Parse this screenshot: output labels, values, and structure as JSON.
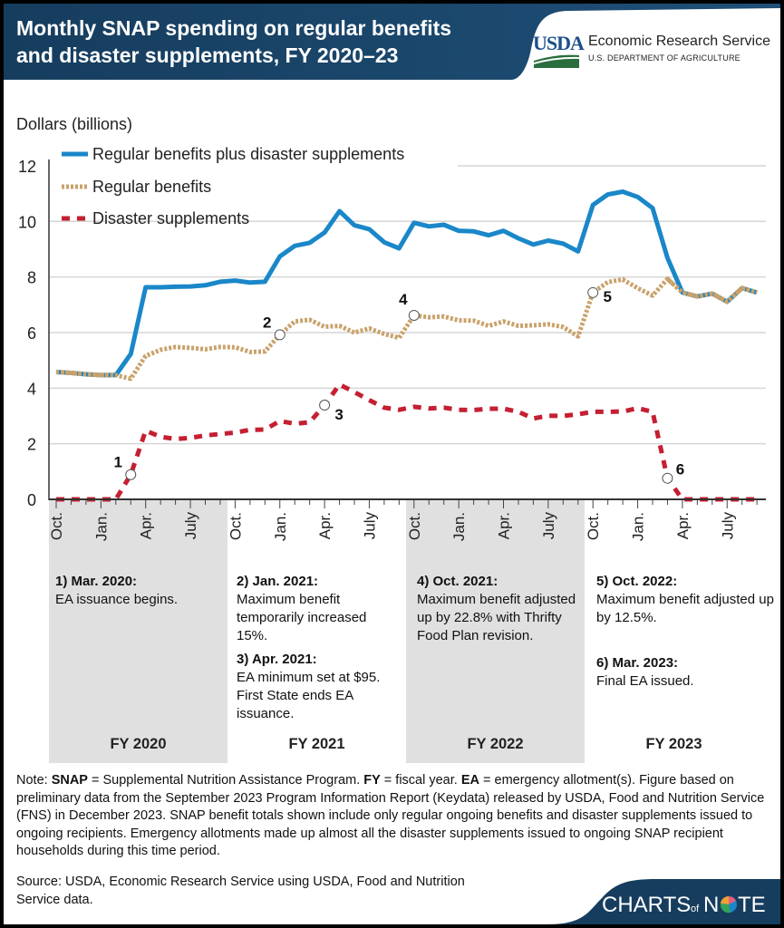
{
  "header": {
    "title": "Monthly SNAP spending on regular benefits and disaster supplements, FY 2020–23",
    "logo_usda": "USDA",
    "logo_agency": "Economic Research Service",
    "logo_department": "U.S. DEPARTMENT OF AGRICULTURE"
  },
  "chart_data": {
    "type": "line",
    "ylabel": "Dollars (billions)",
    "ylim": [
      0,
      12
    ],
    "yticks": [
      "0",
      "2",
      "4",
      "6",
      "8",
      "10",
      "12"
    ],
    "grid": true,
    "legend_placement": "top-left",
    "x_start": "Oct. 2019",
    "x_end": "Sept. 2023",
    "x_tick_labels": [
      "Oct.",
      "Jan.",
      "Apr.",
      "July",
      "Oct.",
      "Jan.",
      "Apr.",
      "July",
      "Oct.",
      "Jan.",
      "Apr.",
      "July",
      "Oct.",
      "Jan.",
      "Apr.",
      "July"
    ],
    "fiscal_years": [
      "FY 2020",
      "FY 2021",
      "FY 2022",
      "FY 2023"
    ],
    "series": [
      {
        "name": "Regular benefits plus disaster supplements",
        "color": "#1a87c9",
        "style": "solid",
        "values": [
          4.58,
          4.55,
          4.5,
          4.47,
          4.47,
          5.23,
          7.63,
          7.63,
          7.65,
          7.66,
          7.7,
          7.83,
          7.87,
          7.8,
          7.83,
          8.74,
          9.12,
          9.23,
          9.6,
          10.37,
          9.86,
          9.72,
          9.25,
          9.03,
          9.95,
          9.82,
          9.88,
          9.66,
          9.64,
          9.5,
          9.66,
          9.39,
          9.17,
          9.31,
          9.2,
          8.92,
          10.59,
          10.97,
          11.07,
          10.88,
          10.48,
          8.69,
          7.44,
          7.3,
          7.4,
          7.11,
          7.6,
          7.44
        ]
      },
      {
        "name": "Regular benefits",
        "color": "#c9a26b",
        "style": "dotted",
        "values": [
          4.58,
          4.55,
          4.5,
          4.47,
          4.47,
          4.34,
          5.16,
          5.38,
          5.48,
          5.45,
          5.4,
          5.48,
          5.47,
          5.3,
          5.32,
          5.92,
          6.4,
          6.46,
          6.21,
          6.24,
          6.0,
          6.15,
          5.95,
          5.81,
          6.62,
          6.55,
          6.58,
          6.44,
          6.43,
          6.24,
          6.4,
          6.24,
          6.26,
          6.3,
          6.2,
          5.86,
          7.44,
          7.82,
          7.91,
          7.6,
          7.33,
          7.93,
          7.44,
          7.3,
          7.4,
          7.11,
          7.6,
          7.44
        ]
      },
      {
        "name": "Disaster supplements",
        "color": "#c51f32",
        "style": "dashed",
        "values": [
          0,
          0,
          0,
          0,
          0,
          0.89,
          2.47,
          2.25,
          2.17,
          2.21,
          2.3,
          2.35,
          2.4,
          2.5,
          2.51,
          2.82,
          2.72,
          2.77,
          3.39,
          4.13,
          3.86,
          3.57,
          3.3,
          3.22,
          3.33,
          3.27,
          3.3,
          3.22,
          3.21,
          3.26,
          3.26,
          3.15,
          2.91,
          3.01,
          3.0,
          3.06,
          3.15,
          3.15,
          3.16,
          3.28,
          3.15,
          0.76,
          0,
          0,
          0,
          0,
          0,
          0
        ]
      }
    ],
    "markers": [
      {
        "label": "1",
        "series": 2,
        "month": 5
      },
      {
        "label": "2",
        "series": 1,
        "month": 15
      },
      {
        "label": "3",
        "series": 2,
        "month": 18
      },
      {
        "label": "4",
        "series": 1,
        "month": 24
      },
      {
        "label": "5",
        "series": 1,
        "month": 36
      },
      {
        "label": "6",
        "series": 2,
        "month": 41
      }
    ]
  },
  "annotations": [
    {
      "head": "1) Mar. 2020:",
      "body": "EA issuance begins."
    },
    {
      "head": "2) Jan. 2021:",
      "body": "Maximum benefit temporarily increased 15%."
    },
    {
      "head": "3) Apr. 2021:",
      "body": "EA minimum set at $95. First State ends EA issuance."
    },
    {
      "head": "4) Oct. 2021:",
      "body": "Maximum benefit adjusted up by 22.8% with Thrifty Food Plan revision."
    },
    {
      "head": "5) Oct. 2022:",
      "body": "Maximum benefit adjusted up by 12.5%."
    },
    {
      "head": "6) Mar. 2023:",
      "body": "Final EA issued."
    }
  ],
  "note": {
    "prefix": "Note: ",
    "t1b": "SNAP",
    "t1": " = Supplemental Nutrition Assistance Program. ",
    "t2b": "FY",
    "t2": " = fiscal year. ",
    "t3b": "EA",
    "t3": " = emergency allotment(s). Figure based on preliminary data from the September 2023 Program Information Report (Keydata) released by USDA, Food and Nutrition Service (FNS) in December 2023. SNAP benefit totals shown include only regular ongoing benefits and disaster supplements issued to ongoing recipients. Emergency allotments made up almost all the disaster supplements issued to ongoing SNAP recipient households during this time period."
  },
  "source": "Source: USDA, Economic Research Service using USDA, Food and Nutrition Service data.",
  "footer_logo": "CHARTS of NOTE"
}
